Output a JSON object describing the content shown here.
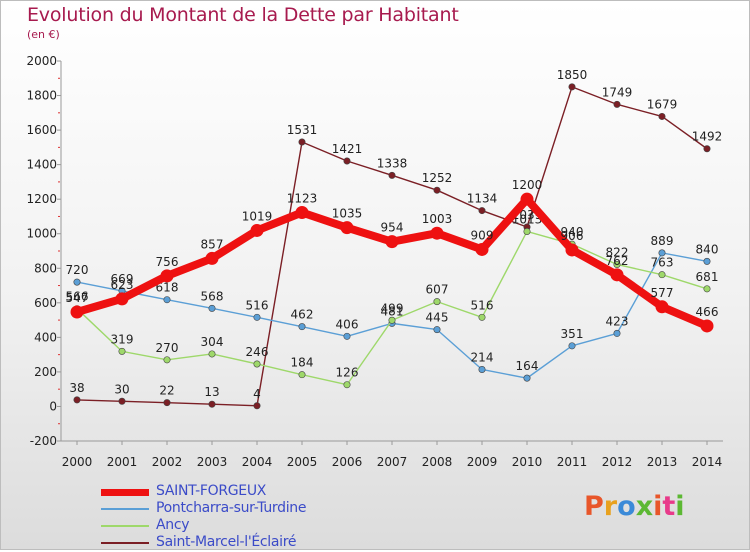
{
  "title": "Evolution du Montant de la Dette par Habitant",
  "subtitle": "(en €)",
  "logo": {
    "text": "Proxiti",
    "colors": [
      "#e8562a",
      "#e8a11e",
      "#3b8ad8",
      "#5cb833",
      "#e8562a",
      "#e83a8a",
      "#5cb833"
    ]
  },
  "chart_data": {
    "type": "line",
    "x": [
      2000,
      2001,
      2002,
      2003,
      2004,
      2005,
      2006,
      2007,
      2008,
      2009,
      2010,
      2011,
      2012,
      2013,
      2014
    ],
    "ylim": [
      -200,
      2000
    ],
    "yticks": [
      -200,
      0,
      200,
      400,
      600,
      800,
      1000,
      1200,
      1400,
      1600,
      1800,
      2000
    ],
    "grid": false,
    "legend_position": "bottom-left",
    "series": [
      {
        "name": "SAINT-FORGEUX",
        "color": "#ee1111",
        "values": [
          547,
          623,
          756,
          857,
          1019,
          1123,
          1035,
          954,
          1003,
          909,
          1200,
          906,
          762,
          577,
          466
        ]
      },
      {
        "name": "Pontcharra-sur-Turdine",
        "color": "#5b9fd6",
        "values": [
          720,
          669,
          618,
          568,
          516,
          462,
          406,
          481,
          445,
          214,
          164,
          351,
          423,
          889,
          840
        ]
      },
      {
        "name": "Ancy",
        "color": "#9ed86a",
        "values": [
          566,
          319,
          270,
          304,
          246,
          184,
          126,
          499,
          607,
          516,
          1013,
          940,
          822,
          763,
          681
        ]
      },
      {
        "name": "Saint-Marcel-l'Éclairé",
        "color": "#7b1f25",
        "values": [
          38,
          30,
          22,
          13,
          4,
          1531,
          1421,
          1338,
          1252,
          1134,
          1039,
          1850,
          1749,
          1679,
          1492
        ]
      }
    ]
  }
}
